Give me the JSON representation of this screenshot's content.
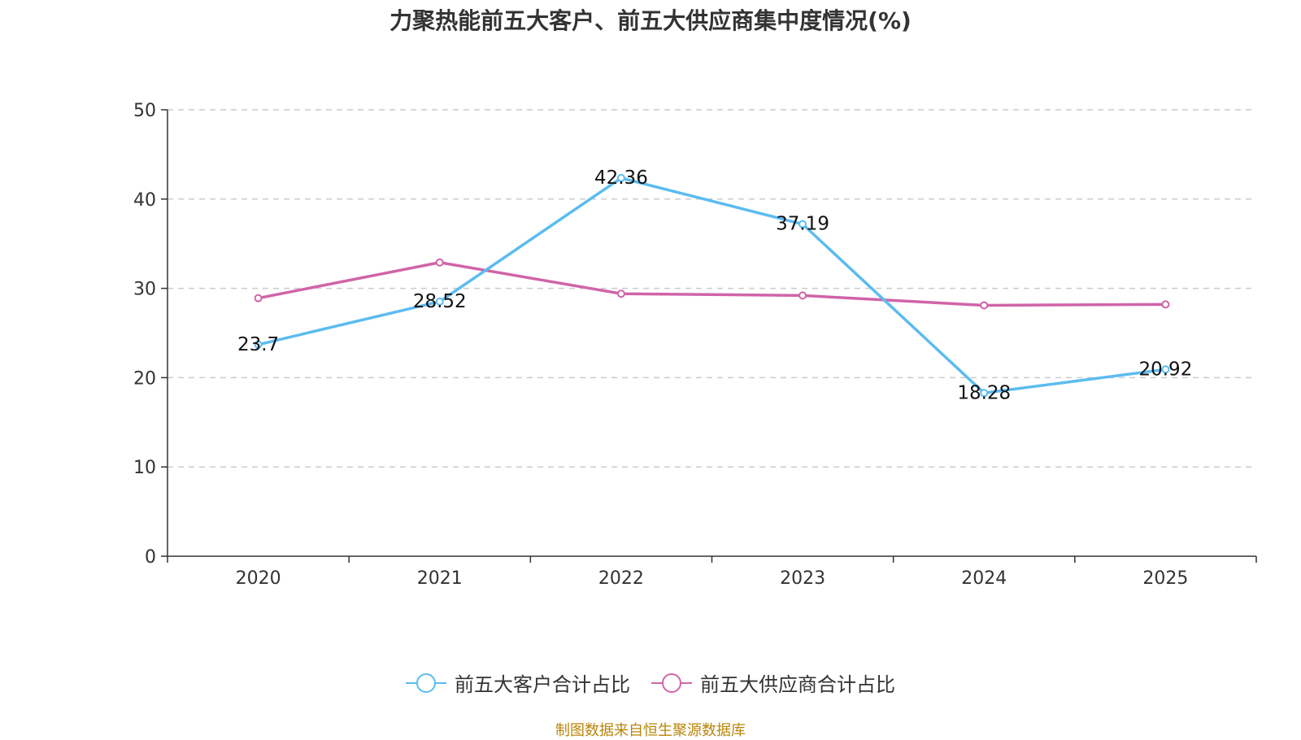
{
  "chart_data": {
    "type": "line",
    "title": "力聚热能前五大客户、前五大供应商集中度情况(%)",
    "categories": [
      "2020",
      "2021",
      "2022",
      "2023",
      "2024",
      "2025"
    ],
    "ylim": [
      0,
      50
    ],
    "yticks": [
      0,
      10,
      20,
      30,
      40,
      50
    ],
    "grid": true,
    "legend_position": "bottom",
    "series": [
      {
        "name": "前五大客户合计占比",
        "color": "#5bbcf0",
        "values": [
          23.7,
          28.52,
          42.36,
          37.19,
          18.28,
          20.92
        ],
        "labels": [
          "23.7",
          "28.52",
          "42.36",
          "37.19",
          "18.28",
          "20.92"
        ]
      },
      {
        "name": "前五大供应商合计占比",
        "color": "#d064a8",
        "values": [
          28.9,
          32.9,
          29.4,
          29.2,
          28.1,
          28.2
        ]
      }
    ]
  },
  "source_note": "制图数据来自恒生聚源数据库"
}
